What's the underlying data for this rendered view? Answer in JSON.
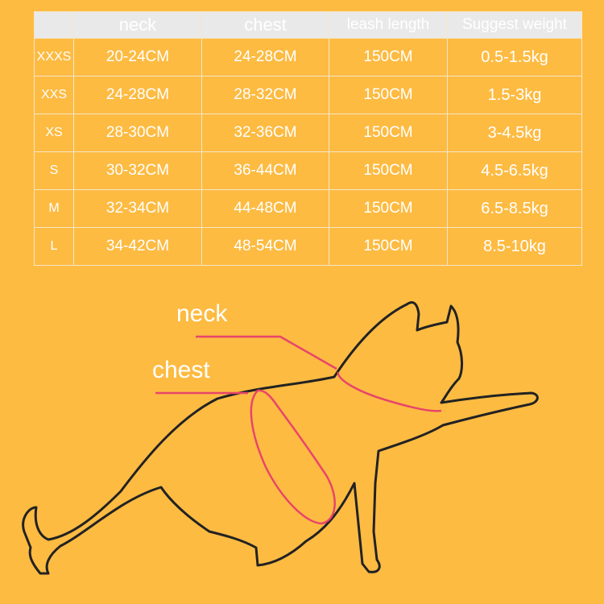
{
  "table": {
    "headers": [
      "",
      "neck",
      "chest",
      "leash length",
      "Suggest weight"
    ],
    "rows": [
      {
        "size": "XXXS",
        "neck": "20-24CM",
        "chest": "24-28CM",
        "leash": "150CM",
        "weight": "0.5-1.5kg"
      },
      {
        "size": "XXS",
        "neck": "24-28CM",
        "chest": "28-32CM",
        "leash": "150CM",
        "weight": "1.5-3kg"
      },
      {
        "size": "XS",
        "neck": "28-30CM",
        "chest": "32-36CM",
        "leash": "150CM",
        "weight": "3-4.5kg"
      },
      {
        "size": "S",
        "neck": "30-32CM",
        "chest": "36-44CM",
        "leash": "150CM",
        "weight": "4.5-6.5kg"
      },
      {
        "size": "M",
        "neck": "32-34CM",
        "chest": "44-48CM",
        "leash": "150CM",
        "weight": "6.5-8.5kg"
      },
      {
        "size": "L",
        "neck": "34-42CM",
        "chest": "48-54CM",
        "leash": "150CM",
        "weight": "8.5-10kg"
      }
    ]
  },
  "diagram": {
    "neck_label": "neck",
    "chest_label": "chest"
  },
  "colors": {
    "background": "#fdbb42",
    "header": "#e9e9e9",
    "measure_line": "#e8456a",
    "outline": "#222222"
  }
}
